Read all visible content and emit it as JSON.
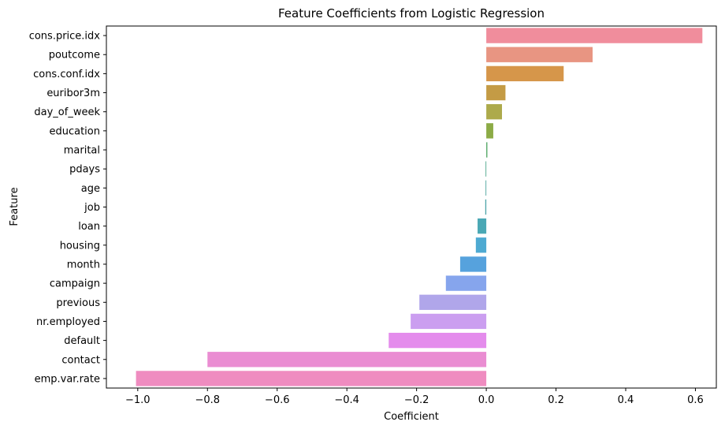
{
  "chart_data": {
    "type": "bar",
    "orientation": "horizontal",
    "title": "Feature Coefficients from Logistic Regression",
    "xlabel": "Coefficient",
    "ylabel": "Feature",
    "xlim": [
      -1.09,
      0.66
    ],
    "xticks": [
      -1.0,
      -0.8,
      -0.6,
      -0.4,
      -0.2,
      0.0,
      0.2,
      0.4,
      0.6
    ],
    "xtick_labels": [
      "−1.0",
      "−0.8",
      "−0.6",
      "−0.4",
      "−0.2",
      "0.0",
      "0.2",
      "0.4",
      "0.6"
    ],
    "grid": false,
    "legend": "none",
    "categories": [
      "cons.price.idx",
      "poutcome",
      "cons.conf.idx",
      "euribor3m",
      "day_of_week",
      "education",
      "marital",
      "pdays",
      "age",
      "job",
      "loan",
      "housing",
      "month",
      "campaign",
      "previous",
      "nr.employed",
      "default",
      "contact",
      "emp.var.rate"
    ],
    "values": [
      0.62,
      0.305,
      0.222,
      0.055,
      0.045,
      0.02,
      0.003,
      -0.002,
      -0.002,
      -0.003,
      -0.025,
      -0.03,
      -0.075,
      -0.116,
      -0.192,
      -0.217,
      -0.28,
      -0.8,
      -1.005
    ],
    "colors": [
      "#f08d9c",
      "#e89582",
      "#d6964a",
      "#c49b45",
      "#adaa4b",
      "#8cab46",
      "#4da561",
      "#4ba68a",
      "#4ba49b",
      "#4fa4a9",
      "#4aa8b5",
      "#4eaad2",
      "#56a2dd",
      "#86a5ed",
      "#b0a6ea",
      "#cb9ef0",
      "#e48cec",
      "#ea8dd2",
      "#ef8cc0"
    ]
  }
}
